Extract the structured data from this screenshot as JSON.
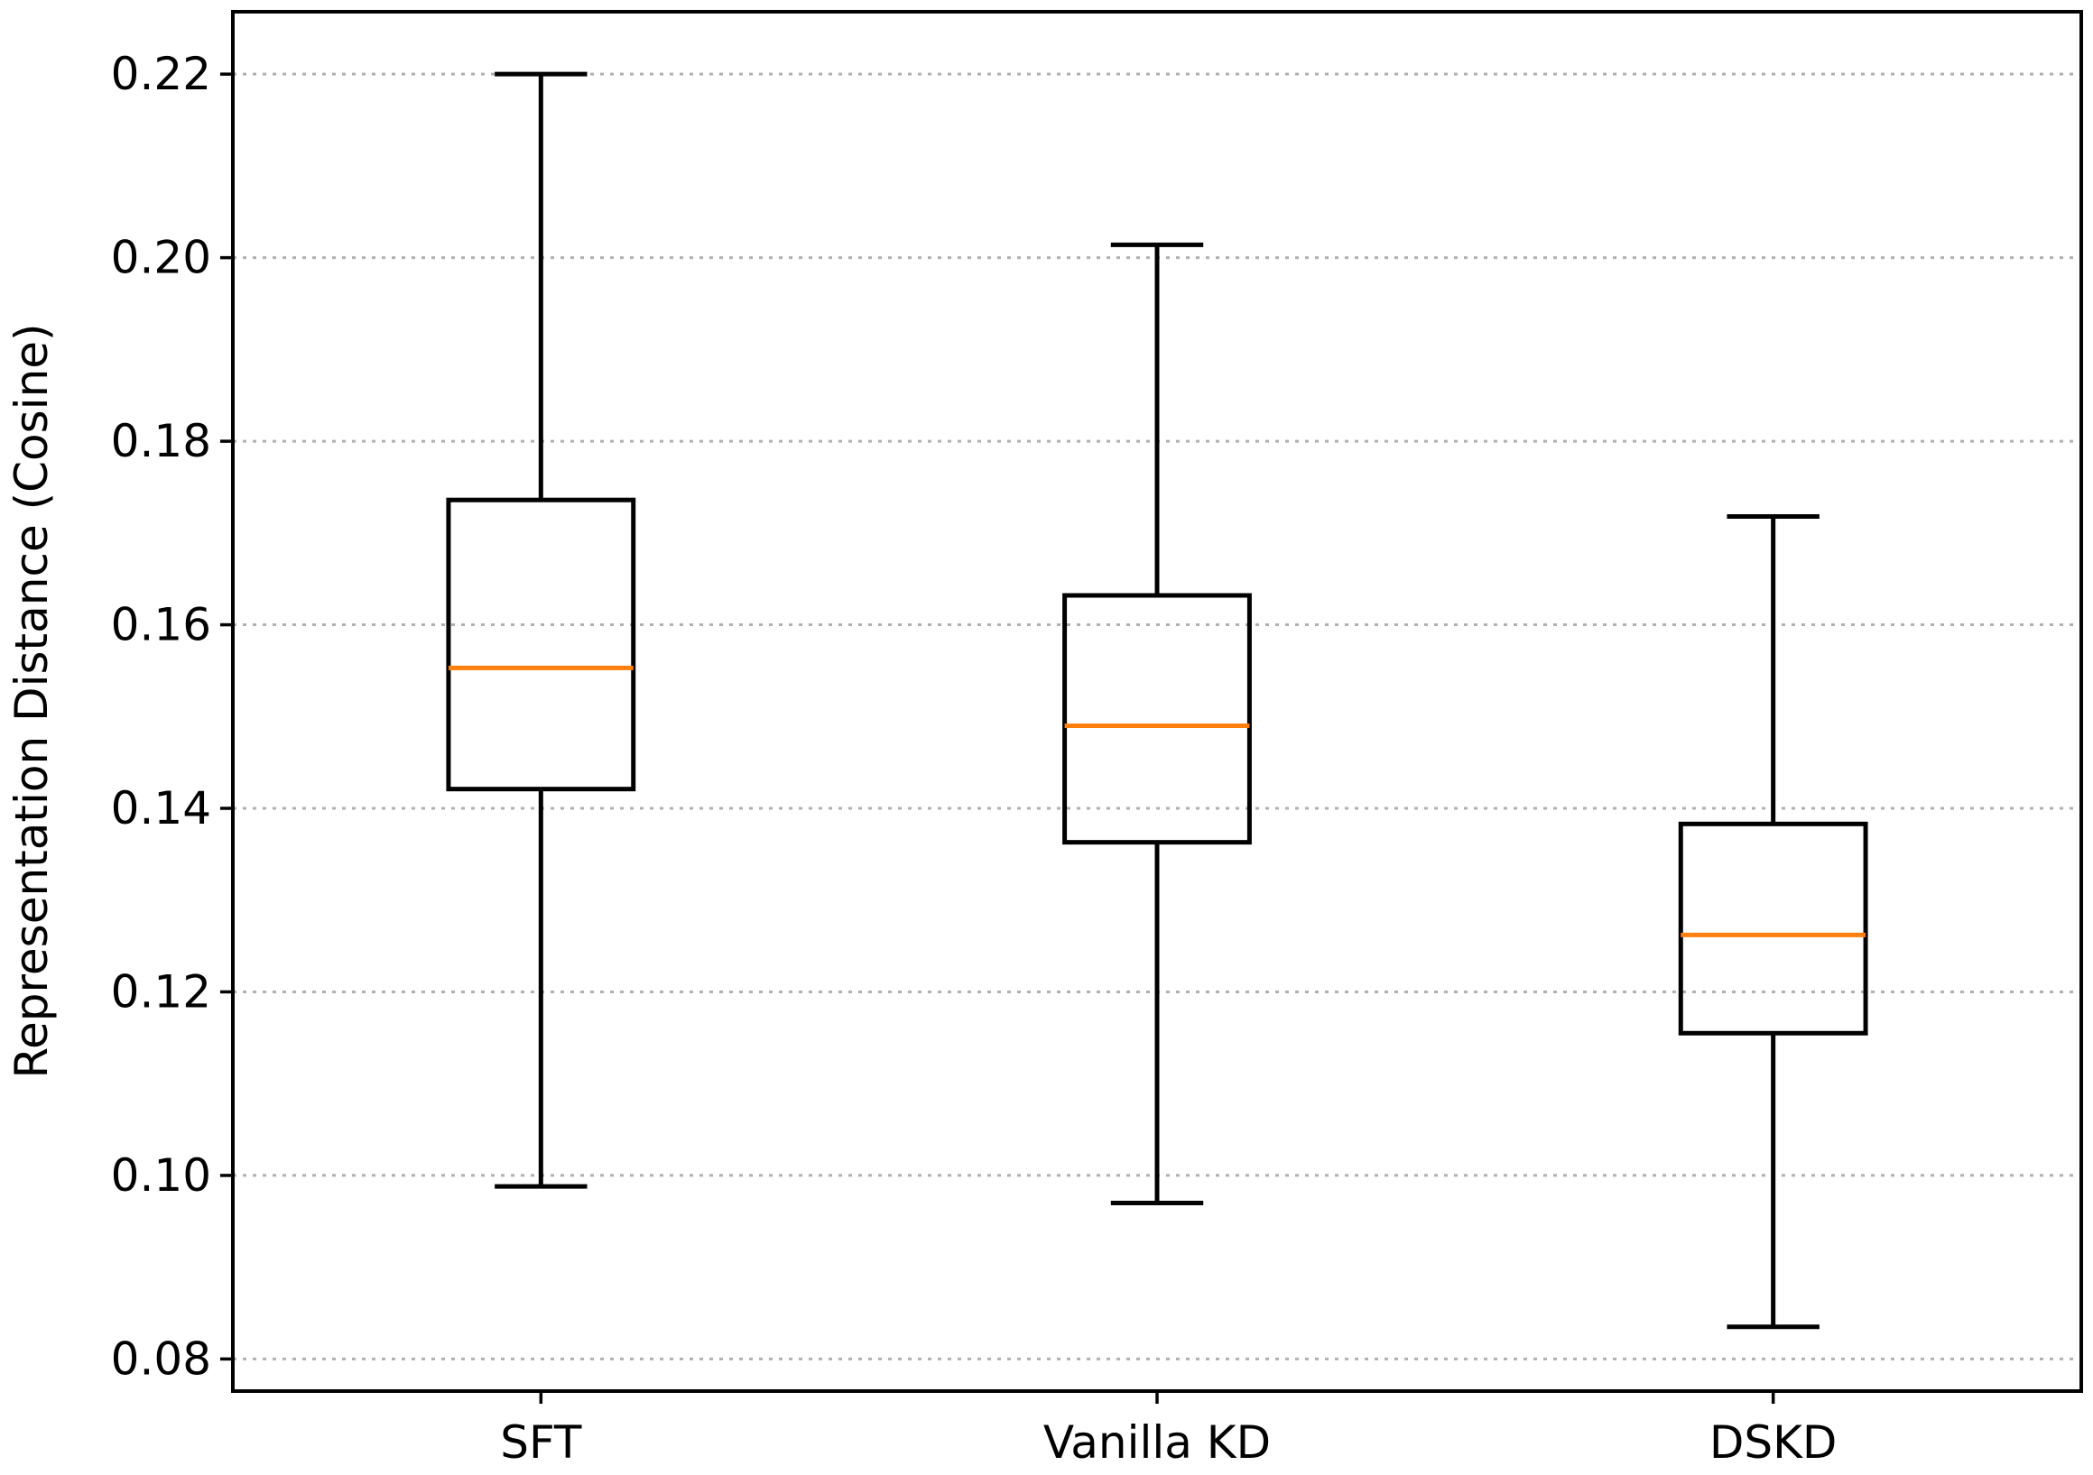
{
  "chart_data": {
    "type": "box",
    "title": "",
    "xlabel": "",
    "ylabel": "Representation Distance (Cosine)",
    "ylim": [
      0.0765,
      0.2268
    ],
    "yticks": [
      "0.08",
      "0.10",
      "0.12",
      "0.14",
      "0.16",
      "0.18",
      "0.20",
      "0.22"
    ],
    "ytick_values": [
      0.08,
      0.1,
      0.12,
      0.14,
      0.16,
      0.18,
      0.2,
      0.22
    ],
    "grid": "y-dotted",
    "median_color": "#ff7f0e",
    "categories": [
      "SFT",
      "Vanilla KD",
      "DSKD"
    ],
    "boxes": [
      {
        "name": "SFT",
        "whisker_low": 0.0988,
        "q1": 0.1421,
        "median": 0.1553,
        "q3": 0.1736,
        "whisker_high": 0.22
      },
      {
        "name": "Vanilla KD",
        "whisker_low": 0.097,
        "q1": 0.1363,
        "median": 0.149,
        "q3": 0.1632,
        "whisker_high": 0.2014
      },
      {
        "name": "DSKD",
        "whisker_low": 0.0835,
        "q1": 0.1155,
        "median": 0.1262,
        "q3": 0.1383,
        "whisker_high": 0.1718
      }
    ]
  }
}
